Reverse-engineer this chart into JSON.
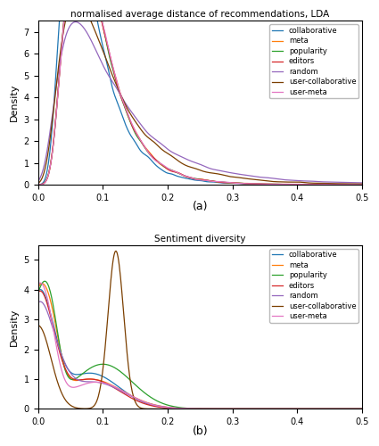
{
  "title_a": "normalised average distance of recommendations, LDA",
  "title_b": "Sentiment diversity",
  "ylabel": "Density",
  "label_a": "(a)",
  "label_b": "(b)",
  "xlim": [
    0.0,
    0.5
  ],
  "series_colors": {
    "collaborative": "#1f77b4",
    "meta": "#ff7f0e",
    "popularity": "#2ca02c",
    "editors": "#d62728",
    "random": "#9467bd",
    "user-collaborative": "#7B3F00",
    "user-meta": "#e377c2"
  },
  "series_names": [
    "collaborative",
    "meta",
    "popularity",
    "editors",
    "random",
    "user-collaborative",
    "user-meta"
  ]
}
